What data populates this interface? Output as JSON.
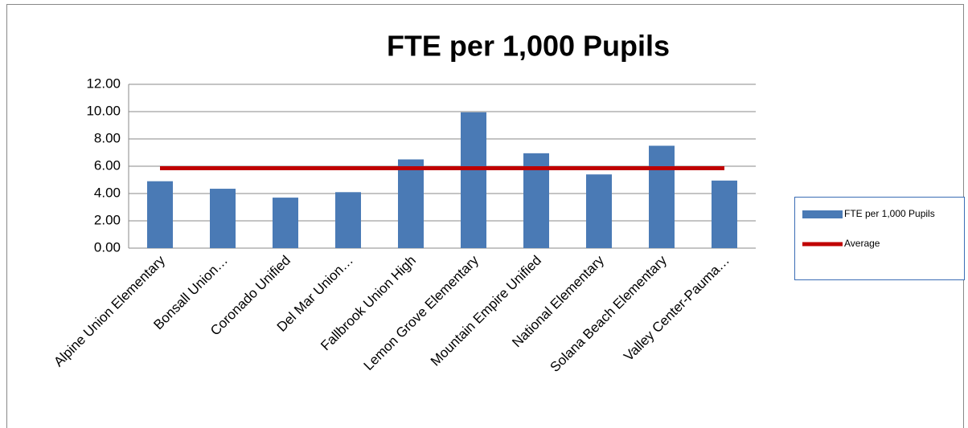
{
  "chart_data": {
    "type": "bar",
    "title": "FTE per 1,000 Pupils",
    "categories": [
      "Alpine Union Elementary",
      "Bonsall Union…",
      "Coronado Unified",
      "Del Mar Union…",
      "Fallbrook Union High",
      "Lemon Grove Elementary",
      "Mountain Empire Unified",
      "National Elementary",
      "Solana Beach Elementary",
      "Valley Center-Pauma…"
    ],
    "series": [
      {
        "name": "FTE per 1,000 Pupils",
        "color": "#4a7ab5",
        "type": "bar",
        "values": [
          4.9,
          4.35,
          3.7,
          4.1,
          6.5,
          9.95,
          6.95,
          5.4,
          7.5,
          4.95
        ]
      },
      {
        "name": "Average",
        "color": "#c00000",
        "type": "line",
        "values": [
          5.85,
          5.85,
          5.85,
          5.85,
          5.85,
          5.85,
          5.85,
          5.85,
          5.85,
          5.85
        ]
      }
    ],
    "ylim": [
      0,
      12
    ],
    "yticks": [
      {
        "value": 0,
        "label": "0.00"
      },
      {
        "value": 2,
        "label": "2.00"
      },
      {
        "value": 4,
        "label": "4.00"
      },
      {
        "value": 6,
        "label": "6.00"
      },
      {
        "value": 8,
        "label": "8.00"
      },
      {
        "value": 10,
        "label": "10.00"
      },
      {
        "value": 12,
        "label": "12.00"
      }
    ],
    "grid": true,
    "legend": "right"
  }
}
